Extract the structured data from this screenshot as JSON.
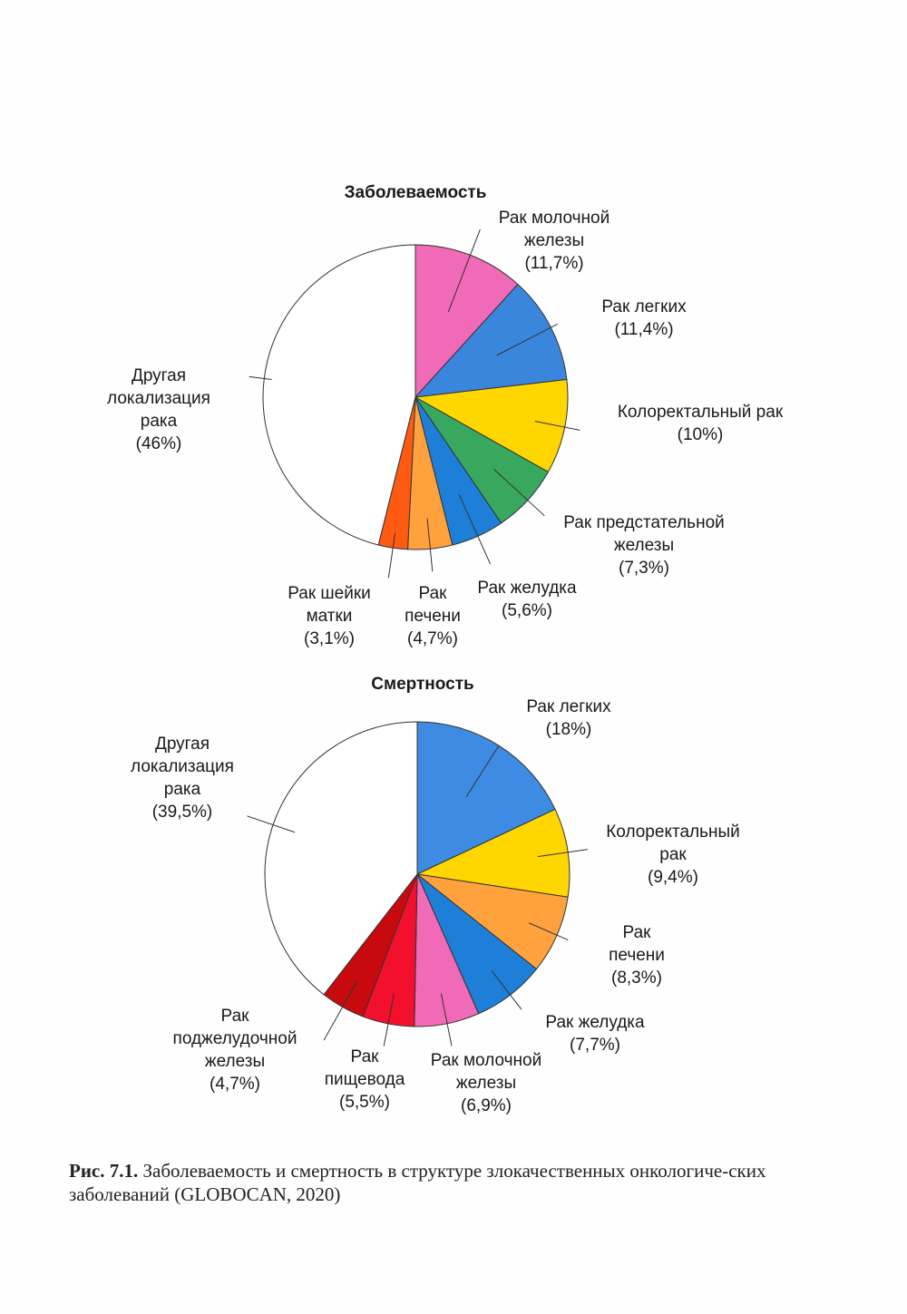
{
  "chart_data": [
    {
      "type": "pie",
      "title": "Заболеваемость",
      "start": "top, clockwise",
      "slices": [
        {
          "label": [
            "Рак молочной",
            "железы"
          ],
          "value": 11.7,
          "value_label": "(11,7%)",
          "color": "#f06ab8"
        },
        {
          "label": [
            "Рак легких"
          ],
          "value": 11.4,
          "value_label": "(11,4%)",
          "color": "#3b86dd"
        },
        {
          "label": [
            "Колоректальный рак"
          ],
          "value": 10,
          "value_label": "(10%)",
          "color": "#ffd600"
        },
        {
          "label": [
            "Рак предстательной",
            "железы"
          ],
          "value": 7.3,
          "value_label": "(7,3%)",
          "color": "#38a85e"
        },
        {
          "label": [
            "Рак желудка"
          ],
          "value": 5.6,
          "value_label": "(5,6%)",
          "color": "#1e7fd8"
        },
        {
          "label": [
            "Рак",
            "печени"
          ],
          "value": 4.7,
          "value_label": "(4,7%)",
          "color": "#ffa23e"
        },
        {
          "label": [
            "Рак шейки",
            "матки"
          ],
          "value": 3.1,
          "value_label": "(3,1%)",
          "color": "#ff5a12"
        },
        {
          "label": [
            "Другая",
            "локализация",
            "рака"
          ],
          "value": 46,
          "value_label": "(46%)",
          "color": "#ffffff"
        }
      ]
    },
    {
      "type": "pie",
      "title": "Смертность",
      "start": "top, clockwise",
      "slices": [
        {
          "label": [
            "Рак легких"
          ],
          "value": 18,
          "value_label": "(18%)",
          "color": "#3d8be2"
        },
        {
          "label": [
            "Колоректальный",
            "рак"
          ],
          "value": 9.4,
          "value_label": "(9,4%)",
          "color": "#ffd600"
        },
        {
          "label": [
            "Рак",
            "печени"
          ],
          "value": 8.3,
          "value_label": "(8,3%)",
          "color": "#ffa23e"
        },
        {
          "label": [
            "Рак желудка"
          ],
          "value": 7.7,
          "value_label": "(7,7%)",
          "color": "#1e7fd8"
        },
        {
          "label": [
            "Рак молочной",
            "железы"
          ],
          "value": 6.9,
          "value_label": "(6,9%)",
          "color": "#f06ab8"
        },
        {
          "label": [
            "Рак",
            "пищевода"
          ],
          "value": 5.5,
          "value_label": "(5,5%)",
          "color": "#f2102c"
        },
        {
          "label": [
            "Рак",
            "поджелудочной",
            "железы"
          ],
          "value": 4.7,
          "value_label": "(4,7%)",
          "color": "#c80a0e"
        },
        {
          "label": [
            "Другая",
            "локализация",
            "рака"
          ],
          "value": 39.5,
          "value_label": "(39,5%)",
          "color": "#ffffff"
        }
      ]
    }
  ],
  "caption": {
    "prefix": "Рис. 7.1.",
    "text": "Заболеваемость и смертность в структуре злокачественных онкологиче-ских заболеваний (GLOBOCAN, 2020)"
  }
}
